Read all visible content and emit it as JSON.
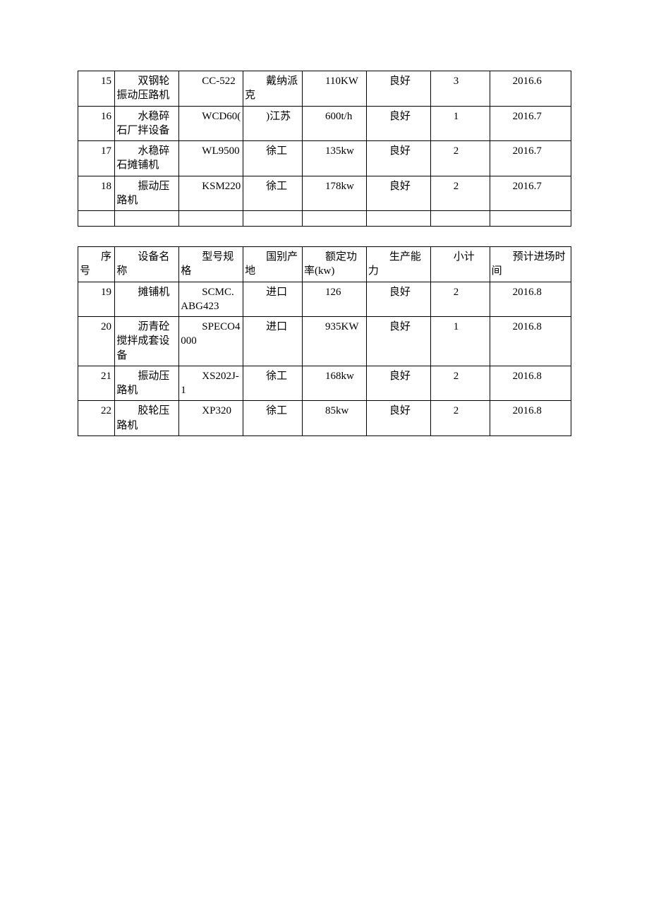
{
  "table1_rows": [
    {
      "seq": "15",
      "name": "双钢轮振动压路机",
      "model": "CC-522",
      "origin": "戴纳派克",
      "power": "110KW",
      "cap": "良好",
      "count": "3",
      "date": "2016.6"
    },
    {
      "seq": "16",
      "name": "水稳碎石厂拌设备",
      "model": "WCD60(",
      "origin": ")江苏",
      "power": "600t/h",
      "cap": "良好",
      "count": "1",
      "date": "2016.7"
    },
    {
      "seq": "17",
      "name": "水稳碎石摊铺机",
      "model": "WL9500",
      "origin": "徐工",
      "power": "135kw",
      "cap": "良好",
      "count": "2",
      "date": "2016.7"
    },
    {
      "seq": "18",
      "name": "振动压路机",
      "model": "KSM220",
      "origin": "徐工",
      "power": "178kw",
      "cap": "良好",
      "count": "2",
      "date": "2016.7"
    }
  ],
  "headers": {
    "seq": "序号",
    "name": "设备名称",
    "model": "型号规格",
    "origin": "国别产地",
    "power": "额定功率(kw)",
    "cap": "生产能力",
    "count": "小计",
    "date": "预计进场时间"
  },
  "table2_rows": [
    {
      "seq": "19",
      "name": "摊铺机",
      "model": "SCMC.ABG423",
      "origin": "进口",
      "power": "126",
      "cap": "良好",
      "count": "2",
      "date": "2016.8"
    },
    {
      "seq": "20",
      "name": "沥青砼搅拌成套设备",
      "model": "SPECO4000",
      "origin": "进口",
      "power": "935KW",
      "cap": "良好",
      "count": "1",
      "date": "2016.8"
    },
    {
      "seq": "21",
      "name": "振动压路机",
      "model": "XS202J-1",
      "origin": "徐工",
      "power": "168kw",
      "cap": "良好",
      "count": "2",
      "date": "2016.8"
    },
    {
      "seq": "22",
      "name": "胶轮压路机",
      "model": "XP320",
      "origin": "徐工",
      "power": "85kw",
      "cap": "良好",
      "count": "2",
      "date": "2016.8"
    }
  ]
}
